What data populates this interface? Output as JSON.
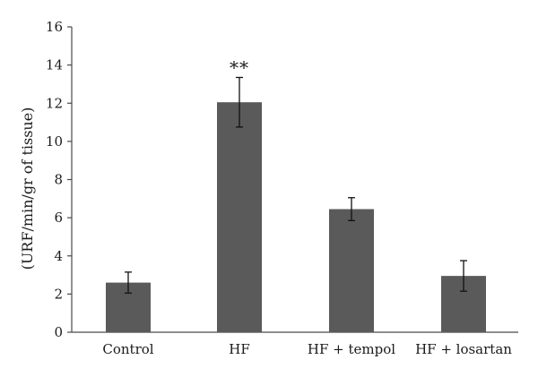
{
  "chart_data": {
    "type": "bar",
    "title": "",
    "xlabel": "",
    "ylabel": "(URF/min/gr of tissue)",
    "ylim": [
      0,
      16
    ],
    "yticks": [
      0,
      2,
      4,
      6,
      8,
      10,
      12,
      14,
      16
    ],
    "categories": [
      "Control",
      "HF",
      "HF + tempol",
      "HF + losartan"
    ],
    "values": [
      2.6,
      12.05,
      6.45,
      2.95
    ],
    "errors": [
      0.55,
      1.3,
      0.6,
      0.8
    ],
    "annotations": [
      {
        "category": "HF",
        "text": "**"
      }
    ],
    "bar_color": "#5a5a5a",
    "grid": false,
    "legend": "none"
  }
}
